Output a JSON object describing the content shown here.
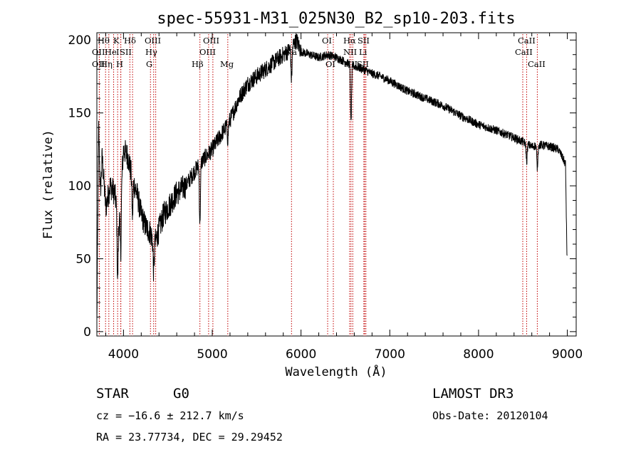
{
  "chart_data": {
    "type": "line",
    "title": "spec-55931-M31_025N30_B2_sp10-203.fits",
    "xlabel": "Wavelength (Å)",
    "ylabel": "Flux (relative)",
    "xlim": [
      3700,
      9100
    ],
    "ylim": [
      -3,
      205
    ],
    "xticks": [
      4000,
      5000,
      6000,
      7000,
      8000,
      9000
    ],
    "yticks": [
      0,
      50,
      100,
      150,
      200
    ],
    "spectrum_anchors": {
      "x": [
        3700,
        3720,
        3740,
        3760,
        3800,
        3850,
        3900,
        3950,
        4000,
        4050,
        4100,
        4150,
        4200,
        4250,
        4300,
        4350,
        4400,
        4450,
        4500,
        4600,
        4700,
        4800,
        4860,
        4900,
        5000,
        5100,
        5200,
        5300,
        5400,
        5500,
        5600,
        5700,
        5800,
        5850,
        5890,
        5950,
        6000,
        6100,
        6200,
        6300,
        6400,
        6500,
        6560,
        6600,
        6700,
        6800,
        6900,
        7000,
        7200,
        7400,
        7600,
        7800,
        8000,
        8200,
        8400,
        8500,
        8600,
        8700,
        8800,
        8900,
        8980,
        8995,
        9000
      ],
      "y": [
        5,
        140,
        95,
        120,
        85,
        100,
        95,
        75,
        125,
        120,
        105,
        95,
        80,
        72,
        68,
        60,
        70,
        80,
        85,
        95,
        100,
        110,
        115,
        118,
        125,
        135,
        145,
        160,
        170,
        175,
        180,
        185,
        190,
        192,
        195,
        200,
        192,
        190,
        188,
        190,
        188,
        185,
        183,
        182,
        180,
        177,
        175,
        172,
        165,
        160,
        155,
        148,
        142,
        138,
        133,
        130,
        127,
        128,
        127,
        125,
        115,
        55,
        50
      ]
    },
    "absorption_features": [
      {
        "x": 3934,
        "depth": 45
      },
      {
        "x": 3969,
        "depth": 40
      },
      {
        "x": 4101,
        "depth": 25
      },
      {
        "x": 4340,
        "depth": 20
      },
      {
        "x": 4861,
        "depth": 40
      },
      {
        "x": 5175,
        "depth": 10
      },
      {
        "x": 5893,
        "depth": 22
      },
      {
        "x": 6563,
        "depth": 40
      },
      {
        "x": 8542,
        "depth": 12
      },
      {
        "x": 8662,
        "depth": 15
      }
    ],
    "emission_lines": [
      {
        "labels": [
          "Hθ",
          "OII",
          "OII"
        ],
        "x": [
          3798,
          3727,
          3729
        ]
      },
      {
        "labels": [
          "Hη",
          "Hε",
          "K"
        ],
        "x": [
          3835,
          3889,
          3934
        ]
      },
      {
        "labels": [
          "HeI",
          "H"
        ],
        "x": [
          3970,
          3969
        ]
      },
      {
        "labels": [
          "Hδ",
          "SII"
        ],
        "x": [
          4102,
          4072
        ]
      },
      {
        "labels": [
          "OIII",
          "Hγ",
          "G"
        ],
        "x": [
          4363,
          4340,
          4304
        ]
      },
      {
        "labels": [
          "Hβ"
        ],
        "x": [
          4861
        ]
      },
      {
        "labels": [
          "OIII",
          "OIII"
        ],
        "x": [
          4959,
          5007
        ]
      },
      {
        "labels": [
          "Mg"
        ],
        "x": [
          5175
        ]
      },
      {
        "labels": [
          "Na"
        ],
        "x": [
          5893
        ]
      },
      {
        "labels": [
          "OI",
          "OI"
        ],
        "x": [
          6300,
          6364
        ]
      },
      {
        "labels": [
          "Hα",
          "NII",
          "NII"
        ],
        "x": [
          6563,
          6548,
          6583
        ]
      },
      {
        "labels": [
          "SII",
          "Li",
          "SII"
        ],
        "x": [
          6717,
          6708,
          6731
        ]
      },
      {
        "labels": [
          "CaII",
          "CaII",
          "CaII"
        ],
        "x": [
          8498,
          8542,
          8662
        ]
      }
    ]
  },
  "info": {
    "object_class": "STAR",
    "subclass": "G0",
    "survey": "LAMOST DR3",
    "redshift": "cz = −16.6 ± 212.7 km/s",
    "obs_date": "Obs-Date: 20120104",
    "coords": "RA =  23.77734, DEC =  29.29452"
  },
  "labels": {
    "row1": [
      "Hθ",
      "K",
      "Hδ",
      "OIII",
      "OIII",
      "OI",
      "Hα",
      "SII",
      "CaII"
    ],
    "row2": [
      "OII",
      "He",
      "I",
      "SII",
      "Hγ",
      "OIII",
      "Na",
      "NII",
      "Li",
      "CaII"
    ],
    "row3": [
      "OII",
      "Hη",
      "H",
      "G",
      "Hβ",
      "Mg",
      "OI",
      "NII",
      "SII",
      "CaII"
    ]
  },
  "colors": {
    "line_marker": "#c00000",
    "spectrum": "#000000",
    "axis": "#000000"
  }
}
